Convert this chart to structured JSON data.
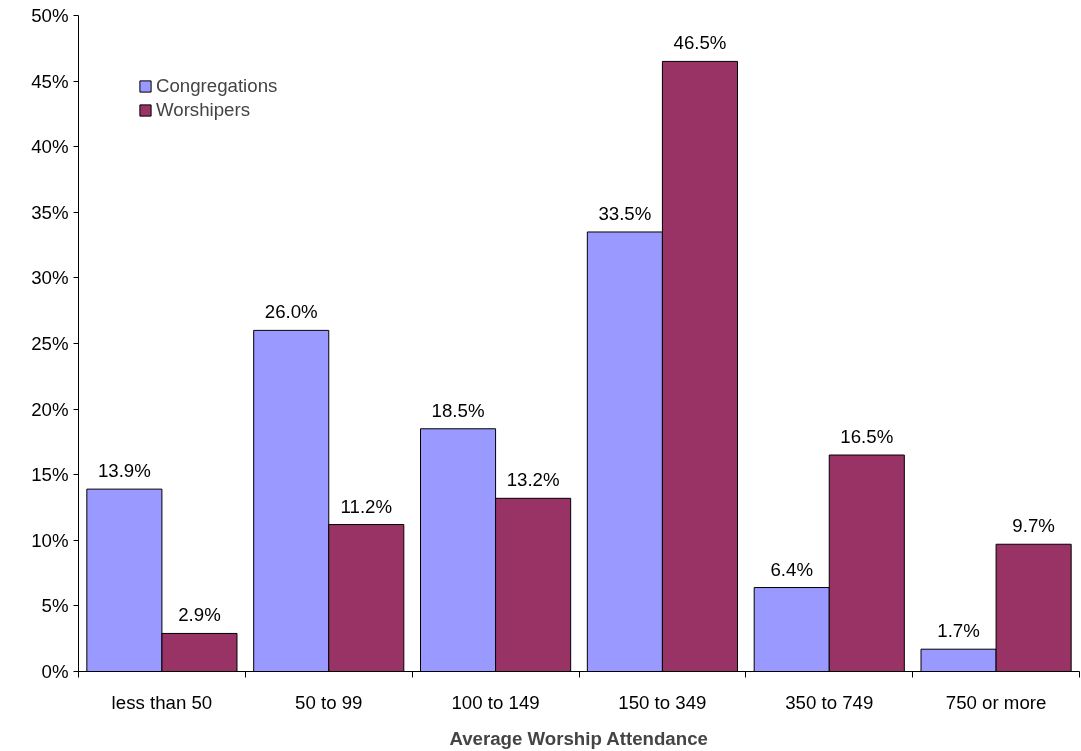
{
  "chart_data": {
    "type": "bar",
    "xlabel": "Average Worship Attendance",
    "categories": [
      "less than 50",
      "50 to 99",
      "100 to 149",
      "150 to 349",
      "350 to 749",
      "750 or more"
    ],
    "series": [
      {
        "name": "Congregations",
        "color": "#9999ff",
        "values": [
          13.9,
          26.0,
          18.5,
          33.5,
          6.4,
          1.7
        ],
        "value_labels": [
          "13.9%",
          "26.0%",
          "18.5%",
          "33.5%",
          "6.4%",
          "1.7%"
        ]
      },
      {
        "name": "Worshipers",
        "color": "#993366",
        "values": [
          2.9,
          11.2,
          13.2,
          46.5,
          16.5,
          9.7
        ],
        "value_labels": [
          "2.9%",
          "11.2%",
          "13.2%",
          "46.5%",
          "16.5%",
          "9.7%"
        ]
      }
    ],
    "ylim": [
      0,
      50
    ],
    "yticks": [
      {
        "value": 0,
        "label": "0%"
      },
      {
        "value": 5,
        "label": "5%"
      },
      {
        "value": 10,
        "label": "10%"
      },
      {
        "value": 15,
        "label": "15%"
      },
      {
        "value": 20,
        "label": "20%"
      },
      {
        "value": 25,
        "label": "25%"
      },
      {
        "value": 30,
        "label": "30%"
      },
      {
        "value": 35,
        "label": "35%"
      },
      {
        "value": 40,
        "label": "40%"
      },
      {
        "value": 45,
        "label": "45%"
      },
      {
        "value": 50,
        "label": "50%"
      }
    ],
    "grid": false,
    "legend": "top left"
  }
}
